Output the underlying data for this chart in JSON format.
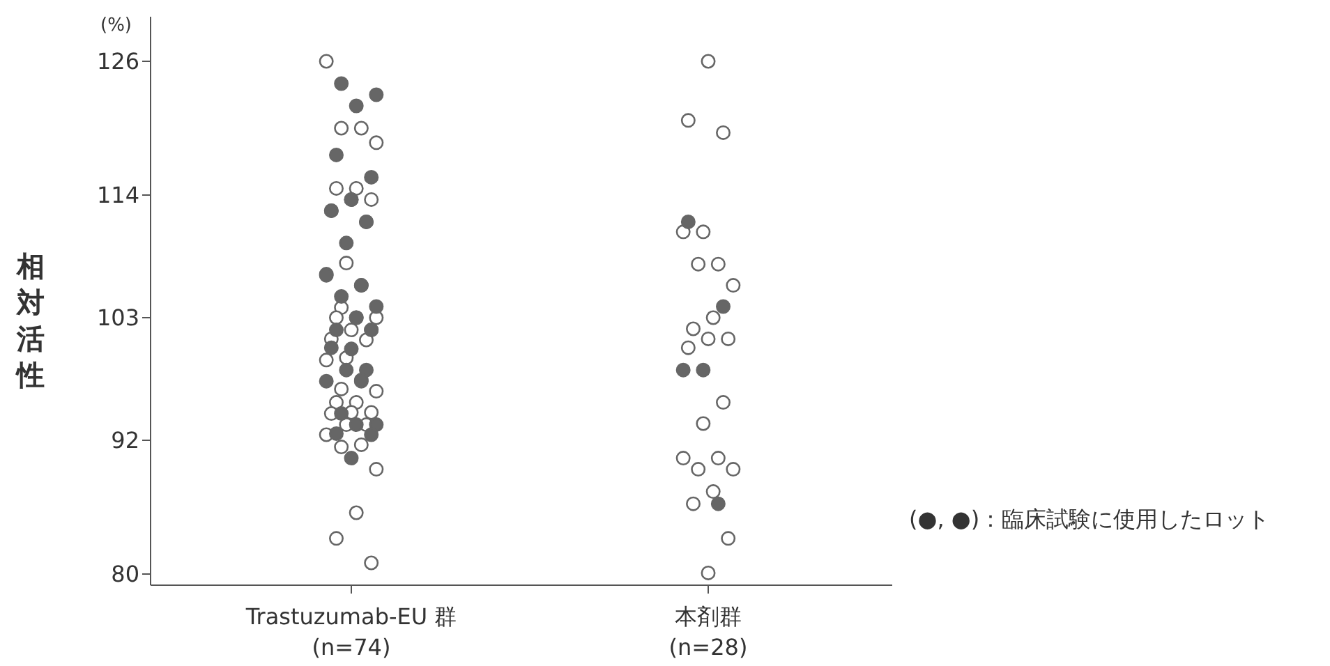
{
  "chart_data": {
    "type": "scatter",
    "ylabel": "相対活性",
    "categories": [
      "Trastuzumab-EU 群\n(n=74)",
      "本剤群\n(n=28)"
    ],
    "ylim": [
      79,
      130
    ],
    "yticks": [
      80,
      92,
      103,
      114,
      126
    ],
    "marker": "circle",
    "annotations": [
      "(%)",
      "(●, ●)：臨床試験に使用したロット"
    ],
    "series": [
      {
        "color": "#ffffff",
        "x": [
          "Trastuzumab-EU 群\n(n=74)",
          "Trastuzumab-EU 群\n(n=74)",
          "Trastuzumab-EU 群\n(n=74)",
          "Trastuzumab-EU 群\n(n=74)",
          "Trastuzumab-EU 群\n(n=74)",
          "Trastuzumab-EU 群\n(n=74)",
          "Trastuzumab-EU 群\n(n=74)",
          "Trastuzumab-EU 群\n(n=74)",
          "Trastuzumab-EU 群\n(n=74)",
          "Trastuzumab-EU 群\n(n=74)",
          "Trastuzumab-EU 群\n(n=74)",
          "Trastuzumab-EU 群\n(n=74)",
          "Trastuzumab-EU 群\n(n=74)",
          "Trastuzumab-EU 群\n(n=74)",
          "Trastuzumab-EU 群\n(n=74)",
          "Trastuzumab-EU 群\n(n=74)",
          "Trastuzumab-EU 群\n(n=74)",
          "Trastuzumab-EU 群\n(n=74)",
          "Trastuzumab-EU 群\n(n=74)",
          "Trastuzumab-EU 群\n(n=74)",
          "Trastuzumab-EU 群\n(n=74)",
          "Trastuzumab-EU 群\n(n=74)",
          "Trastuzumab-EU 群\n(n=74)",
          "Trastuzumab-EU 群\n(n=74)",
          "Trastuzumab-EU 群\n(n=74)",
          "Trastuzumab-EU 群\n(n=74)",
          "Trastuzumab-EU 群\n(n=74)",
          "Trastuzumab-EU 群\n(n=74)",
          "Trastuzumab-EU 群\n(n=74)",
          "Trastuzumab-EU 群\n(n=74)",
          "Trastuzumab-EU 群\n(n=74)",
          "Trastuzumab-EU 群\n(n=74)",
          "Trastuzumab-EU 群\n(n=74)",
          "Trastuzumab-EU 群\n(n=74)",
          "Trastuzumab-EU 群\n(n=74)",
          "Trastuzumab-EU 群\n(n=74)",
          "Trastuzumab-EU 群\n(n=74)",
          "Trastuzumab-EU 群\n(n=74)",
          "Trastuzumab-EU 群\n(n=74)",
          "Trastuzumab-EU 群\n(n=74)",
          "本剤群\n(n=28)",
          "本剤群\n(n=28)",
          "本剤群\n(n=28)",
          "本剤群\n(n=28)",
          "本剤群\n(n=28)",
          "本剤群\n(n=28)",
          "本剤群\n(n=28)",
          "本剤群\n(n=28)",
          "本剤群\n(n=28)",
          "本剤群\n(n=28)",
          "本剤群\n(n=28)",
          "本剤群\n(n=28)",
          "本剤群\n(n=28)",
          "本剤群\n(n=28)",
          "本剤群\n(n=28)",
          "本剤群\n(n=28)",
          "本剤群\n(n=28)",
          "本剤群\n(n=28)",
          "本剤群\n(n=28)",
          "本剤群\n(n=28)",
          "本剤群\n(n=28)",
          "本剤群\n(n=28)",
          "本剤群\n(n=28)"
        ],
        "values": [
          126,
          120,
          120,
          118.7,
          114.6,
          114.6,
          113.6,
          113.6,
          112.6,
          111.6,
          107.9,
          106.9,
          105.9,
          103.9,
          103,
          103,
          103,
          101.9,
          101.9,
          101.1,
          101,
          99.4,
          99.2,
          97.3,
          96.6,
          96.4,
          95.4,
          95.4,
          94.5,
          94.5,
          94.4,
          93.4,
          93.4,
          92.5,
          91.6,
          91.4,
          89.4,
          85.5,
          83.2,
          81,
          126,
          120.7,
          119.6,
          110.7,
          110.7,
          107.8,
          107.8,
          105.9,
          103,
          102,
          101.1,
          101.1,
          100.3,
          95.4,
          93.5,
          90.4,
          90.4,
          89.4,
          89.4,
          87.4,
          86.3,
          83.2,
          80.1
        ]
      },
      {
        "color": "#666666",
        "x": [
          "Trastuzumab-EU 群\n(n=74)",
          "Trastuzumab-EU 群\n(n=74)",
          "Trastuzumab-EU 群\n(n=74)",
          "Trastuzumab-EU 群\n(n=74)",
          "Trastuzumab-EU 群\n(n=74)",
          "Trastuzumab-EU 群\n(n=74)",
          "Trastuzumab-EU 群\n(n=74)",
          "Trastuzumab-EU 群\n(n=74)",
          "Trastuzumab-EU 群\n(n=74)",
          "Trastuzumab-EU 群\n(n=74)",
          "Trastuzumab-EU 群\n(n=74)",
          "Trastuzumab-EU 群\n(n=74)",
          "Trastuzumab-EU 群\n(n=74)",
          "Trastuzumab-EU 群\n(n=74)",
          "Trastuzumab-EU 群\n(n=74)",
          "Trastuzumab-EU 群\n(n=74)",
          "Trastuzumab-EU 群\n(n=74)",
          "Trastuzumab-EU 群\n(n=74)",
          "Trastuzumab-EU 群\n(n=74)",
          "Trastuzumab-EU 群\n(n=74)",
          "Trastuzumab-EU 群\n(n=74)",
          "Trastuzumab-EU 群\n(n=74)",
          "Trastuzumab-EU 群\n(n=74)",
          "Trastuzumab-EU 群\n(n=74)",
          "Trastuzumab-EU 群\n(n=74)",
          "Trastuzumab-EU 群\n(n=74)",
          "Trastuzumab-EU 群\n(n=74)",
          "Trastuzumab-EU 群\n(n=74)",
          "本剤群\n(n=28)",
          "本剤群\n(n=28)",
          "本剤群\n(n=28)",
          "本剤群\n(n=28)",
          "本剤群\n(n=28)"
        ],
        "values": [
          124,
          123,
          122,
          117.6,
          115.6,
          113.6,
          112.6,
          111.6,
          109.7,
          106.8,
          105.9,
          104.9,
          104,
          103,
          101.9,
          101.9,
          100.2,
          100.3,
          98.3,
          98.3,
          97.3,
          97.4,
          94.4,
          93.4,
          93.4,
          92.6,
          92.5,
          90.4,
          111.6,
          104,
          98.3,
          98.3,
          86.3
        ]
      }
    ]
  }
}
